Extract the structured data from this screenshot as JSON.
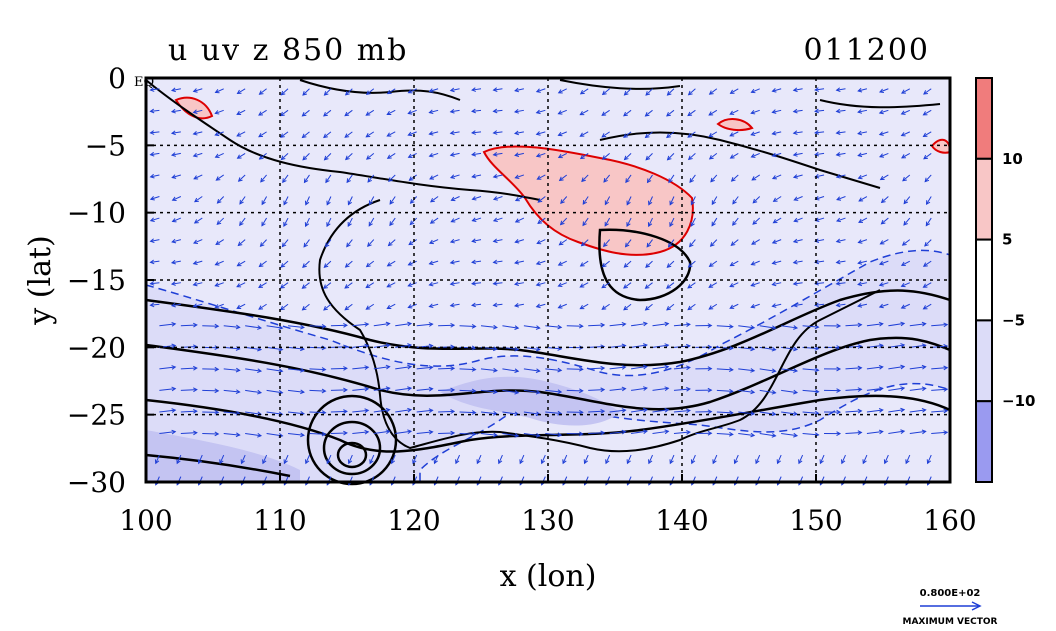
{
  "chart_data": {
    "type": "contour_vector_map",
    "title": "u uv z 850 mb",
    "timestamp": "011200",
    "xlabel": "x (lon)",
    "ylabel": "y (lat)",
    "xlim": [
      100,
      160
    ],
    "ylim": [
      -30,
      0
    ],
    "x_ticks": [
      100,
      110,
      120,
      130,
      140,
      150,
      160
    ],
    "x_tick_labels": [
      "100",
      "110",
      "120",
      "130",
      "140",
      "150",
      "160"
    ],
    "y_ticks": [
      0,
      -5,
      -10,
      -15,
      -20,
      -25,
      -30
    ],
    "y_tick_labels": [
      "0",
      "−5",
      "−10",
      "−15",
      "−20",
      "−25",
      "−30"
    ],
    "y_top_suffix": "EQ",
    "grid": true,
    "colorbar": {
      "levels": [
        -15,
        -10,
        -5,
        5,
        10,
        15
      ],
      "labels": [
        "10",
        "5",
        "−5",
        "−10"
      ],
      "label_values": [
        10,
        5,
        -5,
        -10
      ],
      "colors": [
        "#f07c7c",
        "#f8c6c6",
        "#ffffff",
        "#dcdcf8",
        "#9a9af0"
      ]
    },
    "vector_legend": {
      "value": "0.800E+02",
      "label": "MAXIMUM VECTOR"
    },
    "colors": {
      "positive_contour": "#dd0000",
      "negative_contour": "#1f3fd6",
      "vector": "#1f3fd6",
      "land_outline": "#000000",
      "height_contour": "#000000"
    }
  }
}
